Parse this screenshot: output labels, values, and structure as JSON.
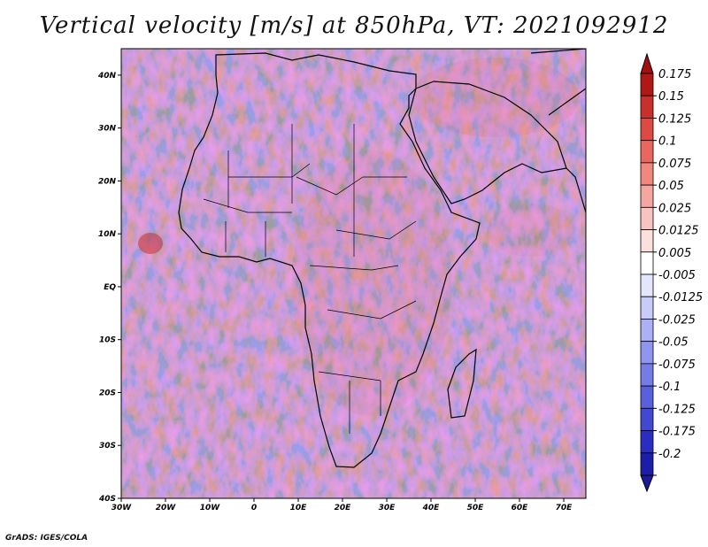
{
  "title": "Vertical velocity [m/s] at 850hPa, VT: 2021092912",
  "credit": "GrADS: IGES/COLA",
  "map": {
    "variable": "Vertical velocity",
    "units": "m/s",
    "level": "850hPa",
    "valid_time": "2021092912",
    "lon_range": [
      -30,
      75
    ],
    "lat_range": [
      -40,
      45
    ],
    "lat_ticks": [
      {
        "value": 40,
        "label": "40N"
      },
      {
        "value": 30,
        "label": "30N"
      },
      {
        "value": 20,
        "label": "20N"
      },
      {
        "value": 10,
        "label": "10N"
      },
      {
        "value": 0,
        "label": "EQ"
      },
      {
        "value": -10,
        "label": "10S"
      },
      {
        "value": -20,
        "label": "20S"
      },
      {
        "value": -30,
        "label": "30S"
      },
      {
        "value": -40,
        "label": "40S"
      }
    ],
    "lon_ticks": [
      {
        "value": -30,
        "label": "30W"
      },
      {
        "value": -20,
        "label": "20W"
      },
      {
        "value": -10,
        "label": "10W"
      },
      {
        "value": 0,
        "label": "0"
      },
      {
        "value": 10,
        "label": "10E"
      },
      {
        "value": 20,
        "label": "20E"
      },
      {
        "value": 30,
        "label": "30E"
      },
      {
        "value": 40,
        "label": "40E"
      },
      {
        "value": 50,
        "label": "50E"
      },
      {
        "value": 60,
        "label": "60E"
      },
      {
        "value": 70,
        "label": "70E"
      }
    ]
  },
  "colorbar": {
    "levels": [
      {
        "label": "0.175",
        "color": "#b01818"
      },
      {
        "label": "0.15",
        "color": "#c8302c"
      },
      {
        "label": "0.125",
        "color": "#dc4a44"
      },
      {
        "label": "0.1",
        "color": "#e86860"
      },
      {
        "label": "0.075",
        "color": "#f08880"
      },
      {
        "label": "0.05",
        "color": "#f4a6a0"
      },
      {
        "label": "0.025",
        "color": "#f8c4c0"
      },
      {
        "label": "0.0125",
        "color": "#fce0de"
      },
      {
        "label": "0.005",
        "color": "#ffffff"
      },
      {
        "label": "-0.005",
        "color": "#e4e6fc"
      },
      {
        "label": "-0.0125",
        "color": "#c8ccf8"
      },
      {
        "label": "-0.025",
        "color": "#acb0f4"
      },
      {
        "label": "-0.05",
        "color": "#9096ee"
      },
      {
        "label": "-0.075",
        "color": "#767ce6"
      },
      {
        "label": "-0.1",
        "color": "#5a60dc"
      },
      {
        "label": "-0.125",
        "color": "#4248d0"
      },
      {
        "label": "-0.175",
        "color": "#2a2ec0"
      },
      {
        "label": "-0.2",
        "color": "#1c1ea8"
      }
    ],
    "top_color": "#a01010",
    "bottom_color": "#1a1a9a"
  }
}
